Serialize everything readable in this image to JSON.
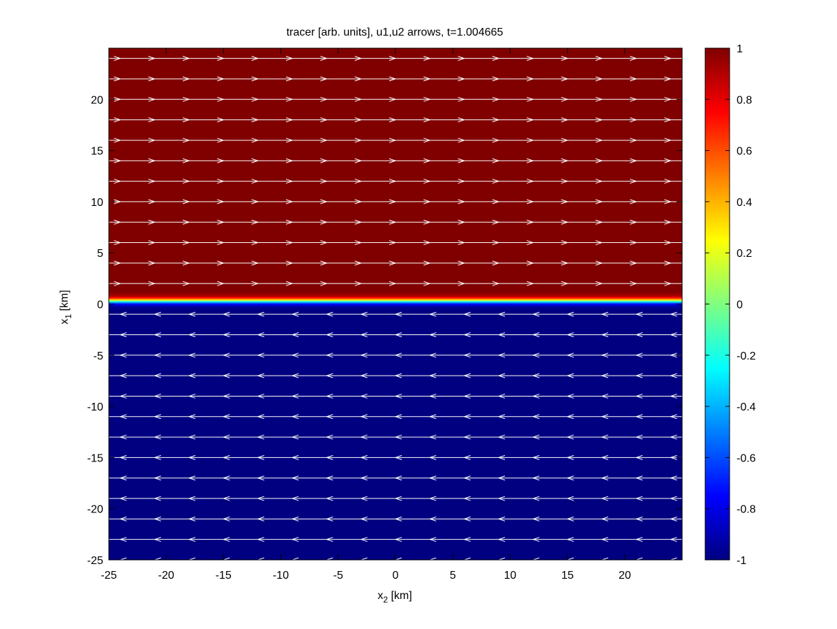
{
  "chart_data": {
    "type": "heatmap",
    "title": "tracer [arb. units], u1,u2 arrows, t=1.004665",
    "xlabel": {
      "main": "x",
      "sub": "2",
      "unit": " [km]"
    },
    "ylabel": {
      "main": "x",
      "sub": "1",
      "unit": " [km]"
    },
    "xlim": [
      -25,
      25
    ],
    "ylim": [
      -25,
      25
    ],
    "xticks": [
      -25,
      -20,
      -15,
      -10,
      -5,
      0,
      5,
      10,
      15,
      20
    ],
    "yticks": [
      -25,
      -20,
      -15,
      -10,
      -5,
      0,
      5,
      10,
      15,
      20
    ],
    "colorbar": {
      "colormap": "jet",
      "clim": [
        -1,
        1
      ],
      "ticks": [
        -1,
        -0.8,
        -0.6,
        -0.4,
        -0.2,
        0,
        0.2,
        0.4,
        0.6,
        0.8,
        1
      ]
    },
    "field": {
      "upper_value": 1,
      "lower_value": -1,
      "interface_x1": 0.3,
      "interface_width_km": 1,
      "upper_color": "#800000",
      "lower_color": "#000080"
    },
    "arrows": {
      "color": "#ffffff",
      "upper_direction": "right",
      "lower_direction": "left",
      "rows_x1": [
        24,
        22,
        20,
        18,
        16,
        14,
        12,
        10,
        8,
        6,
        4,
        2,
        -1,
        -3,
        -5,
        -7,
        -9,
        -11,
        -13,
        -15,
        -17,
        -19,
        -21,
        -23,
        -25
      ],
      "arrowhead_x2": [
        -24,
        -21,
        -18,
        -15,
        -12,
        -9,
        -6,
        -3,
        0,
        3,
        6,
        9,
        12,
        15,
        18,
        21,
        24
      ]
    },
    "grid": false
  }
}
